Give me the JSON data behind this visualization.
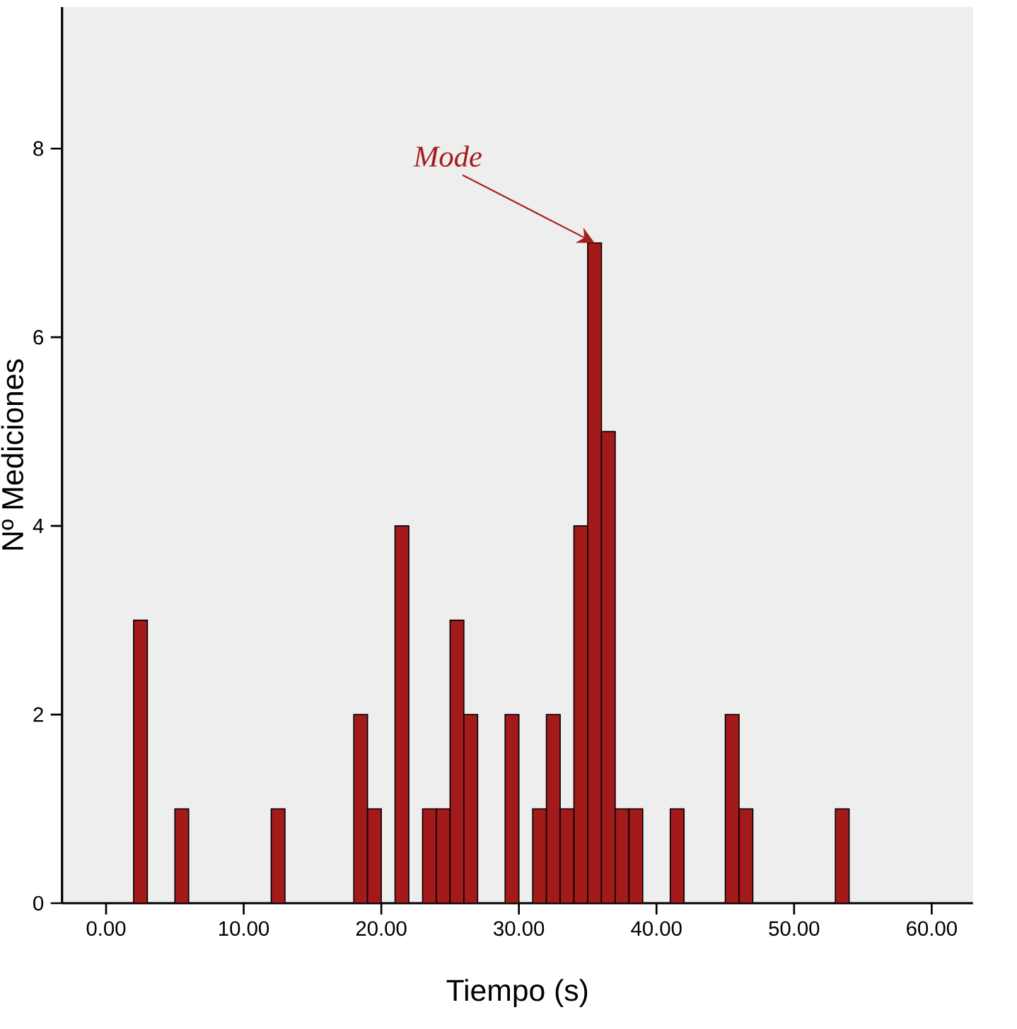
{
  "chart_data": {
    "type": "histogram",
    "xlabel": "Tiempo (s)",
    "ylabel": "Nº Mediciones",
    "bins": [
      2,
      3,
      4,
      5,
      6,
      7,
      8,
      9,
      10,
      11,
      12,
      13,
      14,
      15,
      16,
      17,
      18,
      19,
      20,
      21,
      22,
      23,
      24,
      25,
      26,
      27,
      28,
      29,
      30,
      31,
      32,
      33,
      34,
      35,
      36,
      37,
      38,
      39,
      40,
      41,
      42,
      43,
      44,
      45,
      46,
      47,
      48,
      49,
      50,
      51,
      52,
      53,
      54
    ],
    "values": [
      3,
      0,
      0,
      1,
      0,
      0,
      0,
      0,
      0,
      0,
      1,
      0,
      0,
      0,
      0,
      0,
      2,
      1,
      0,
      4,
      0,
      1,
      1,
      3,
      2,
      0,
      0,
      2,
      0,
      1,
      2,
      1,
      4,
      7,
      5,
      1,
      1,
      0,
      0,
      1,
      0,
      0,
      0,
      2,
      1,
      0,
      0,
      0,
      0,
      0,
      0,
      1
    ],
    "color": "#a31a1a",
    "xlim": [
      -3.2,
      63
    ],
    "ylim": [
      0,
      9.5
    ],
    "xticks": [
      {
        "value": 0,
        "label": "0.00"
      },
      {
        "value": 10,
        "label": "10.00"
      },
      {
        "value": 20,
        "label": "20.00"
      },
      {
        "value": 30,
        "label": "30.00"
      },
      {
        "value": 40,
        "label": "40.00"
      },
      {
        "value": 50,
        "label": "50.00"
      },
      {
        "value": 60,
        "label": "60.00"
      }
    ],
    "yticks": [
      0,
      2,
      4,
      6,
      8
    ],
    "annotations": [
      {
        "text": "Mode",
        "x": 35.5,
        "y": 7
      }
    ],
    "grid": false
  }
}
